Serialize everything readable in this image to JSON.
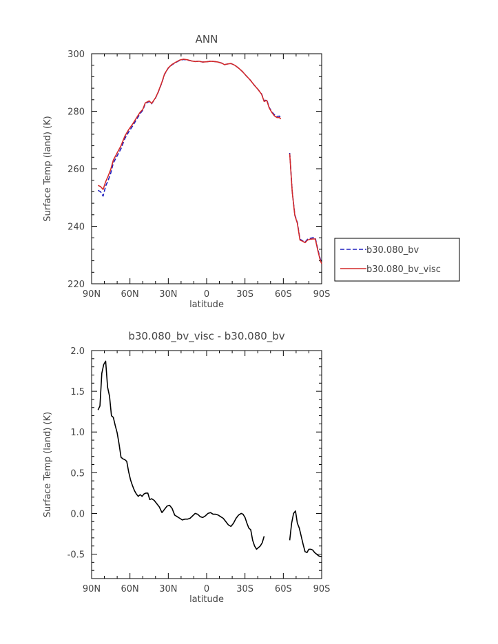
{
  "chart_data": [
    {
      "type": "line",
      "title": "ANN",
      "xlabel": "latitude",
      "ylabel": "Surface Temp (land) (K)",
      "xlim": [
        -90,
        90
      ],
      "ylim": [
        220,
        300
      ],
      "x_ticks": [
        -90,
        -60,
        -30,
        0,
        30,
        60,
        90
      ],
      "x_tick_labels": [
        "90N",
        "60N",
        "30N",
        "0",
        "30S",
        "60S",
        "90S"
      ],
      "y_ticks": [
        220,
        240,
        260,
        280,
        300
      ],
      "y_tick_labels": [
        "220",
        "240",
        "260",
        "280",
        "300"
      ],
      "legend": {
        "placement": "right"
      },
      "series": [
        {
          "name": "b30.080_bv",
          "color": "#1f1fbf",
          "dash": "dashed",
          "segments": [
            [
              [
                -85,
                252.5
              ],
              [
                -83,
                252
              ],
              [
                -81,
                250.5
              ],
              [
                -79,
                254
              ],
              [
                -77,
                256
              ],
              [
                -75,
                258.5
              ],
              [
                -73,
                262
              ],
              [
                -70,
                264.5
              ],
              [
                -67,
                267
              ],
              [
                -64,
                270.5
              ],
              [
                -61,
                272.8
              ],
              [
                -58,
                274.8
              ],
              [
                -55,
                277
              ],
              [
                -52,
                279.2
              ],
              [
                -50,
                280.3
              ],
              [
                -48,
                282.6
              ],
              [
                -45,
                283.4
              ],
              [
                -43,
                282.6
              ],
              [
                -40,
                284.6
              ],
              [
                -38,
                286.5
              ],
              [
                -35,
                290
              ],
              [
                -33,
                292.8
              ],
              [
                -30,
                295
              ],
              [
                -27,
                296.2
              ],
              [
                -24,
                297
              ],
              [
                -21,
                297.7
              ],
              [
                -18,
                298
              ],
              [
                -15,
                297.8
              ],
              [
                -12,
                297.5
              ],
              [
                -9,
                297.3
              ],
              [
                -6,
                297.4
              ],
              [
                -3,
                297.1
              ],
              [
                0,
                297.2
              ],
              [
                3,
                297.4
              ],
              [
                6,
                297.3
              ],
              [
                9,
                297.1
              ],
              [
                12,
                296.7
              ],
              [
                14,
                296.2
              ],
              [
                16,
                296.4
              ],
              [
                19,
                296.6
              ],
              [
                22,
                296
              ],
              [
                25,
                295
              ],
              [
                28,
                293.8
              ],
              [
                31,
                292.3
              ],
              [
                34,
                290.9
              ],
              [
                37,
                289.2
              ],
              [
                40,
                287.7
              ],
              [
                43,
                286
              ],
              [
                45,
                283.6
              ],
              [
                47,
                284
              ],
              [
                49,
                281.3
              ],
              [
                51,
                279.8
              ],
              [
                53,
                278.8
              ],
              [
                55,
                278.2
              ],
              [
                57,
                278.3
              ],
              [
                58,
                277.5
              ]
            ],
            [
              [
                65,
                265.5
              ],
              [
                67,
                252
              ],
              [
                69,
                244
              ],
              [
                71,
                241.3
              ],
              [
                73,
                235.5
              ],
              [
                75,
                235
              ],
              [
                77,
                234.5
              ],
              [
                79,
                235.5
              ],
              [
                81,
                235.8
              ],
              [
                83,
                236
              ],
              [
                85,
                236
              ],
              [
                87,
                232
              ],
              [
                89,
                228.5
              ],
              [
                90,
                227.5
              ]
            ]
          ]
        },
        {
          "name": "b30.080_bv_visc",
          "color": "#d42a2a",
          "dash": "solid",
          "segments": [
            [
              [
                -85,
                254.2
              ],
              [
                -83,
                253.8
              ],
              [
                -81,
                252.8
              ],
              [
                -79,
                255.5
              ],
              [
                -77,
                257.5
              ],
              [
                -75,
                259.8
              ],
              [
                -73,
                263
              ],
              [
                -70,
                265.5
              ],
              [
                -67,
                268
              ],
              [
                -64,
                271.3
              ],
              [
                -61,
                273.6
              ],
              [
                -58,
                275.5
              ],
              [
                -55,
                277.6
              ],
              [
                -52,
                279.7
              ],
              [
                -50,
                280.6
              ],
              [
                -48,
                282.9
              ],
              [
                -45,
                283.6
              ],
              [
                -43,
                282.7
              ],
              [
                -40,
                284.7
              ],
              [
                -38,
                286.6
              ],
              [
                -35,
                290.1
              ],
              [
                -33,
                292.9
              ],
              [
                -30,
                295.1
              ],
              [
                -27,
                296.3
              ],
              [
                -24,
                297.1
              ],
              [
                -21,
                297.8
              ],
              [
                -18,
                298.1
              ],
              [
                -15,
                297.9
              ],
              [
                -12,
                297.5
              ],
              [
                -9,
                297.3
              ],
              [
                -6,
                297.4
              ],
              [
                -3,
                297.1
              ],
              [
                0,
                297.2
              ],
              [
                3,
                297.4
              ],
              [
                6,
                297.3
              ],
              [
                9,
                297.1
              ],
              [
                12,
                296.7
              ],
              [
                14,
                296.2
              ],
              [
                16,
                296.4
              ],
              [
                19,
                296.6
              ],
              [
                22,
                296
              ],
              [
                25,
                295
              ],
              [
                28,
                293.8
              ],
              [
                31,
                292.3
              ],
              [
                34,
                290.9
              ],
              [
                37,
                289.2
              ],
              [
                40,
                287.7
              ],
              [
                43,
                285.9
              ],
              [
                45,
                283.4
              ],
              [
                47,
                283.8
              ],
              [
                49,
                281.1
              ],
              [
                51,
                279.6
              ],
              [
                53,
                278.4
              ],
              [
                55,
                277.8
              ],
              [
                57,
                277.8
              ],
              [
                58,
                277.3
              ]
            ],
            [
              [
                65,
                265.2
              ],
              [
                67,
                251.8
              ],
              [
                69,
                243.8
              ],
              [
                71,
                241
              ],
              [
                73,
                235.2
              ],
              [
                75,
                234.8
              ],
              [
                77,
                234.3
              ],
              [
                79,
                235.2
              ],
              [
                81,
                235.5
              ],
              [
                83,
                235.6
              ],
              [
                85,
                235.6
              ],
              [
                87,
                231.6
              ],
              [
                89,
                228
              ],
              [
                90,
                227
              ]
            ]
          ]
        }
      ]
    },
    {
      "type": "line",
      "title": "b30.080_bv_visc - b30.080_bv",
      "xlabel": "latitude",
      "ylabel": "Surface Temp (land) (K)",
      "xlim": [
        -90,
        90
      ],
      "ylim": [
        -0.8,
        2.0
      ],
      "x_ticks": [
        -90,
        -60,
        -30,
        0,
        30,
        60,
        90
      ],
      "x_tick_labels": [
        "90N",
        "60N",
        "30N",
        "0",
        "30S",
        "60S",
        "90S"
      ],
      "y_ticks": [
        -0.5,
        0,
        0.5,
        1.0,
        1.5,
        2.0
      ],
      "y_tick_labels": [
        "-0.5",
        "0.0",
        "0.5",
        "1.0",
        "1.5",
        "2.0"
      ],
      "series": [
        {
          "name": "",
          "color": "#000000",
          "dash": "solid",
          "segments": [
            [
              [
                -85,
                1.27
              ],
              [
                -83.5,
                1.32
              ],
              [
                -82,
                1.72
              ],
              [
                -80.5,
                1.83
              ],
              [
                -79,
                1.87
              ],
              [
                -77.5,
                1.55
              ],
              [
                -76,
                1.44
              ],
              [
                -74.5,
                1.2
              ],
              [
                -73,
                1.18
              ],
              [
                -71.5,
                1.08
              ],
              [
                -70,
                0.99
              ],
              [
                -68.5,
                0.85
              ],
              [
                -67,
                0.69
              ],
              [
                -65.5,
                0.67
              ],
              [
                -64,
                0.66
              ],
              [
                -62.5,
                0.64
              ],
              [
                -61,
                0.51
              ],
              [
                -59.5,
                0.41
              ],
              [
                -58,
                0.34
              ],
              [
                -56.5,
                0.28
              ],
              [
                -55,
                0.24
              ],
              [
                -53.5,
                0.21
              ],
              [
                -52,
                0.23
              ],
              [
                -50.5,
                0.21
              ],
              [
                -49,
                0.24
              ],
              [
                -47.5,
                0.25
              ],
              [
                -46,
                0.25
              ],
              [
                -44.5,
                0.17
              ],
              [
                -43,
                0.18
              ],
              [
                -41,
                0.16
              ],
              [
                -39,
                0.12
              ],
              [
                -37,
                0.08
              ],
              [
                -35,
                0.01
              ],
              [
                -33,
                0.05
              ],
              [
                -31,
                0.09
              ],
              [
                -29,
                0.1
              ],
              [
                -27,
                0.06
              ],
              [
                -25,
                -0.02
              ],
              [
                -23,
                -0.04
              ],
              [
                -21,
                -0.06
              ],
              [
                -19,
                -0.08
              ],
              [
                -17,
                -0.07
              ],
              [
                -15,
                -0.07
              ],
              [
                -13,
                -0.06
              ],
              [
                -11,
                -0.03
              ],
              [
                -9,
                0
              ],
              [
                -7,
                -0.01
              ],
              [
                -5,
                -0.04
              ],
              [
                -3,
                -0.05
              ],
              [
                -1,
                -0.03
              ],
              [
                1,
                0
              ],
              [
                3,
                0.01
              ],
              [
                5,
                -0.01
              ],
              [
                7,
                -0.01
              ],
              [
                9,
                -0.02
              ],
              [
                11,
                -0.04
              ],
              [
                13,
                -0.06
              ],
              [
                15,
                -0.1
              ],
              [
                17,
                -0.14
              ],
              [
                19,
                -0.16
              ],
              [
                21,
                -0.12
              ],
              [
                23,
                -0.06
              ],
              [
                25,
                -0.02
              ],
              [
                27,
                0
              ],
              [
                28.5,
                -0.01
              ],
              [
                30,
                -0.05
              ],
              [
                31.5,
                -0.12
              ],
              [
                33,
                -0.18
              ],
              [
                34.5,
                -0.2
              ],
              [
                36,
                -0.33
              ],
              [
                37.5,
                -0.4
              ],
              [
                39,
                -0.44
              ],
              [
                40.5,
                -0.42
              ],
              [
                42,
                -0.4
              ],
              [
                43.5,
                -0.36
              ],
              [
                45,
                -0.28
              ]
            ],
            [
              [
                65,
                -0.33
              ],
              [
                66.5,
                -0.12
              ],
              [
                68,
                0
              ],
              [
                69.5,
                0.03
              ],
              [
                71,
                -0.12
              ],
              [
                72.5,
                -0.18
              ],
              [
                74,
                -0.28
              ],
              [
                75.5,
                -0.38
              ],
              [
                77,
                -0.47
              ],
              [
                78.5,
                -0.48
              ],
              [
                80,
                -0.44
              ],
              [
                81.5,
                -0.44
              ],
              [
                83,
                -0.45
              ],
              [
                84.5,
                -0.48
              ],
              [
                86,
                -0.5
              ],
              [
                87.5,
                -0.52
              ],
              [
                89,
                -0.53
              ],
              [
                90,
                -0.53
              ]
            ]
          ]
        }
      ]
    }
  ]
}
